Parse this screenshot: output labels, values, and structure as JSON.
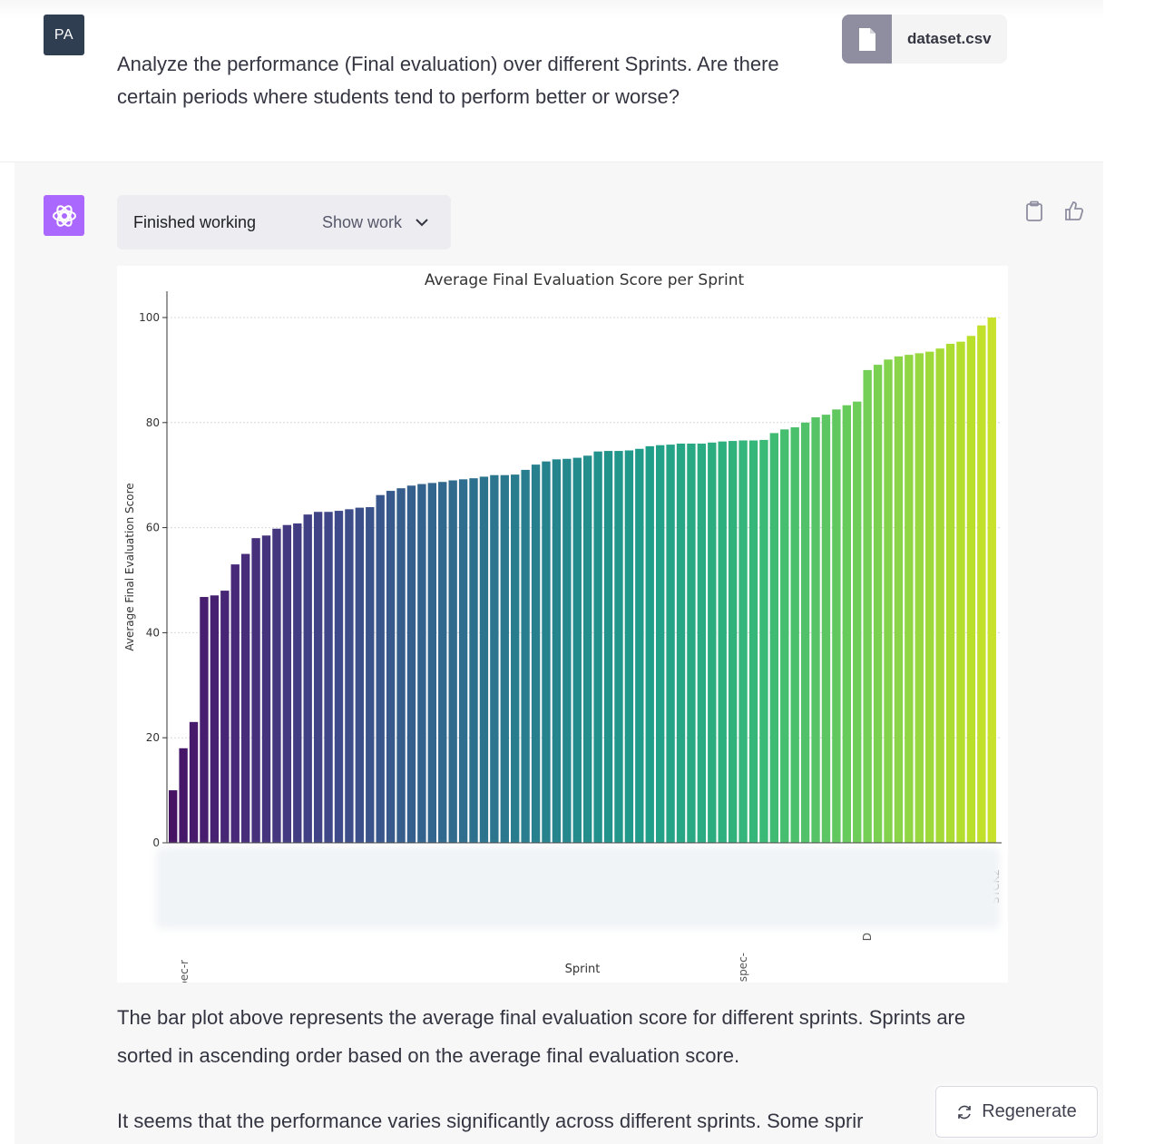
{
  "user": {
    "avatar_initials": "PA",
    "message": "Analyze the performance (Final evaluation) over different Sprints. Are there certain periods where students tend to perform better or worse?",
    "attachment": {
      "name": "dataset.csv",
      "icon": "file-icon"
    }
  },
  "assistant": {
    "avatar_icon": "openai-logo-icon",
    "work_status": "Finished working",
    "show_work_label": "Show work",
    "actions": [
      "copy-icon",
      "thumbs-up-icon"
    ],
    "paragraph_1": "The bar plot above represents the average final evaluation score for different sprints. Sprints are sorted in ascending order based on the average final evaluation score.",
    "paragraph_2": "It seems that the performance varies significantly across different sprints. Some sprir"
  },
  "regenerate": {
    "label": "Regenerate",
    "icon": "refresh-icon"
  },
  "chart_data": {
    "type": "bar",
    "title": "Average Final Evaluation Score per Sprint",
    "xlabel": "Sprint",
    "ylabel": "Average Final Evaluation Score",
    "ylim": [
      0,
      100
    ],
    "yticks": [
      0,
      20,
      40,
      60,
      80,
      100
    ],
    "colormap": "viridis",
    "grid": "horizontal",
    "visible_x_tick_fragments": [
      "spec-r",
      "spec-",
      "D",
      "STCK2"
    ],
    "values": [
      10,
      18,
      23,
      46.8,
      47.1,
      48,
      53,
      55,
      58,
      58.5,
      59.8,
      60.5,
      60.8,
      62.5,
      63,
      63,
      63.2,
      63.5,
      63.8,
      63.9,
      66.2,
      67,
      67.5,
      68,
      68.3,
      68.5,
      68.7,
      69,
      69.2,
      69.4,
      69.7,
      70,
      70,
      70.1,
      71,
      72,
      72.6,
      73,
      73.1,
      73.3,
      73.7,
      74.5,
      74.6,
      74.6,
      74.7,
      75,
      75.5,
      75.7,
      75.8,
      76,
      76,
      76,
      76.2,
      76.4,
      76.5,
      76.6,
      76.6,
      76.7,
      78,
      78.7,
      79.1,
      80,
      81,
      81.5,
      82.5,
      83.3,
      84,
      90,
      91,
      92,
      92.6,
      92.9,
      93.2,
      93.5,
      94.1,
      95,
      95.4,
      96.5,
      98.5,
      100
    ]
  }
}
